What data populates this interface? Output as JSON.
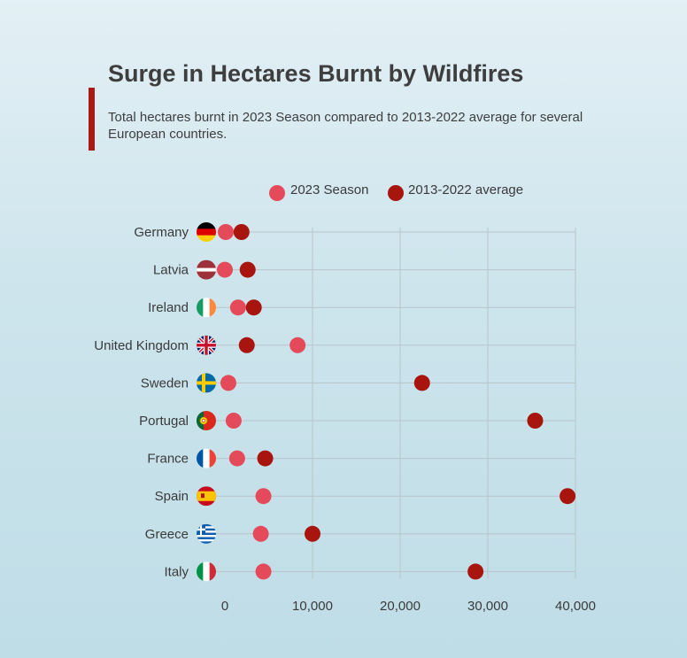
{
  "title": "Surge in Hectares Burnt by Wildfires",
  "subtitle": "Total hectares burnt in 2023 Season compared to 2013-2022 average for several European countries.",
  "colors": {
    "accent": "#a81a12",
    "season_2023": "#e54a5b",
    "average": "#a8140e"
  },
  "chart_data": {
    "type": "scatter",
    "title": "Surge in Hectares Burnt by Wildfires",
    "xlabel": "",
    "ylabel": "",
    "xlim": [
      0,
      40000
    ],
    "xticks": [
      0,
      10000,
      20000,
      30000,
      40000
    ],
    "xtick_labels": [
      "0",
      "10,000",
      "20,000",
      "30,000",
      "40,000"
    ],
    "grid": true,
    "legend_position": "top",
    "categories": [
      "Germany",
      "Latvia",
      "Ireland",
      "United Kingdom",
      "Sweden",
      "Portugal",
      "France",
      "Spain",
      "Greece",
      "Italy"
    ],
    "flag_icons": [
      "germany-flag-icon",
      "latvia-flag-icon",
      "ireland-flag-icon",
      "uk-flag-icon",
      "sweden-flag-icon",
      "portugal-flag-icon",
      "france-flag-icon",
      "spain-flag-icon",
      "greece-flag-icon",
      "italy-flag-icon"
    ],
    "series": [
      {
        "name": "2023 Season",
        "color": "#e54a5b",
        "values": [
          100,
          0,
          1500,
          8300,
          400,
          1000,
          1400,
          4400,
          4100,
          4400
        ]
      },
      {
        "name": "2013-2022 average",
        "color": "#a8140e",
        "values": [
          1900,
          2600,
          3300,
          2500,
          22500,
          35400,
          4600,
          39100,
          10000,
          28600
        ]
      }
    ]
  }
}
